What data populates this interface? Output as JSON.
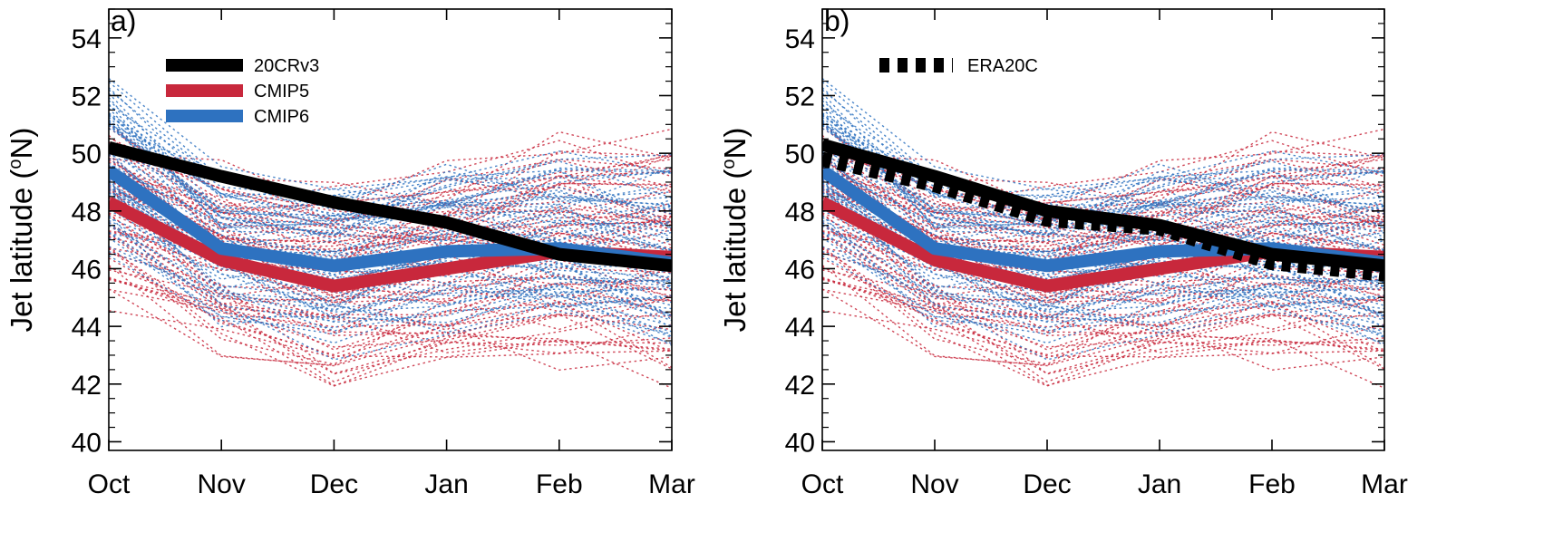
{
  "chart_data": [
    {
      "panel_label": "a)",
      "type": "line",
      "categories": [
        "Oct",
        "Nov",
        "Dec",
        "Jan",
        "Feb",
        "Mar"
      ],
      "ylabel": "Jet latitude",
      "ylabel_unit_sup": "o",
      "ylabel_unit_after": "N",
      "ylim": [
        39.7,
        55.0
      ],
      "yticks": [
        40,
        42,
        44,
        46,
        48,
        50,
        52,
        54
      ],
      "legend": [
        "20CRv3",
        "CMIP5",
        "CMIP6"
      ],
      "series": [
        {
          "name": "20CRv3",
          "color": "#000000",
          "style": "solid",
          "values": [
            50.2,
            49.2,
            48.3,
            47.6,
            46.5,
            46.1
          ]
        },
        {
          "name": "CMIP5",
          "color": "#c8283c",
          "style": "solid",
          "values": [
            48.3,
            46.3,
            45.4,
            46.0,
            46.6,
            46.4
          ]
        },
        {
          "name": "CMIP6",
          "color": "#2e72c0",
          "style": "solid",
          "values": [
            49.4,
            46.7,
            46.1,
            46.6,
            46.7,
            46.2
          ]
        }
      ]
    },
    {
      "panel_label": "b)",
      "type": "line",
      "categories": [
        "Oct",
        "Nov",
        "Dec",
        "Jan",
        "Feb",
        "Mar"
      ],
      "ylabel": "Jet latitude",
      "ylabel_unit_sup": "o",
      "ylabel_unit_after": "N",
      "ylim": [
        39.7,
        55.0
      ],
      "yticks": [
        40,
        42,
        44,
        46,
        48,
        50,
        52,
        54
      ],
      "legend": [
        "ERA20C"
      ],
      "series": [
        {
          "name": "20CRv3",
          "color": "#000000",
          "style": "solid",
          "values": [
            50.3,
            49.2,
            48.0,
            47.5,
            46.5,
            46.1
          ]
        },
        {
          "name": "ERA20C",
          "color": "#000000",
          "style": "dashed",
          "values": [
            49.8,
            48.9,
            47.7,
            47.4,
            46.2,
            45.8
          ]
        },
        {
          "name": "CMIP5",
          "color": "#c8283c",
          "style": "solid",
          "values": [
            48.3,
            46.3,
            45.4,
            46.0,
            46.6,
            46.4
          ]
        },
        {
          "name": "CMIP6",
          "color": "#2e72c0",
          "style": "solid",
          "values": [
            49.4,
            46.7,
            46.1,
            46.6,
            46.7,
            46.2
          ]
        }
      ]
    }
  ]
}
